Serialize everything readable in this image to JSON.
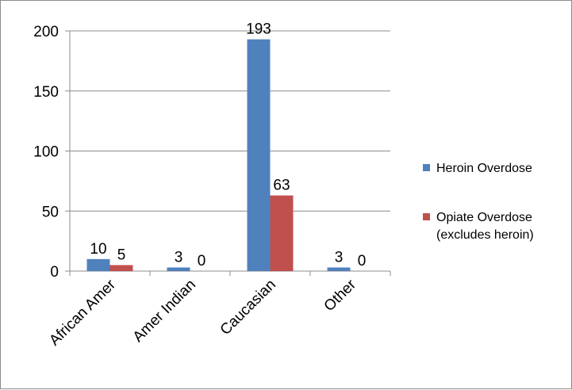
{
  "chart_data": {
    "type": "bar",
    "categories": [
      "African Amer",
      "Amer Indian",
      "Caucasian",
      "Other"
    ],
    "series": [
      {
        "name": "Heroin Overdose",
        "values": [
          10,
          3,
          193,
          3
        ],
        "color": "#4f81bd"
      },
      {
        "name": "Opiate Overdose (excludes heroin)",
        "legend_lines": [
          "Opiate Overdose",
          "(excludes heroin)"
        ],
        "values": [
          5,
          0,
          63,
          0
        ],
        "color": "#c0504d"
      }
    ],
    "yticks": [
      "0",
      "50",
      "100",
      "150",
      "200"
    ],
    "ylim": [
      0,
      200
    ],
    "grid": true,
    "legend_position": "right",
    "title": "",
    "xlabel": "",
    "ylabel": ""
  }
}
